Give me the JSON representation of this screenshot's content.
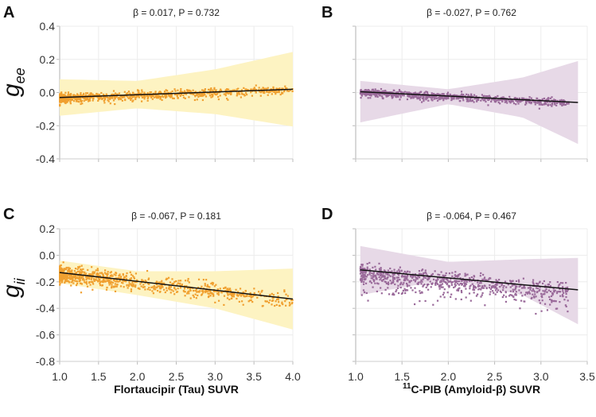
{
  "chart_data": [
    {
      "panel": "A",
      "type": "scatter",
      "title": "β = 0.017, P = 0.732",
      "ylabel": "g",
      "ylabel_sub": "ee",
      "xlabel": "",
      "xlim": [
        1.0,
        4.0
      ],
      "ylim": [
        -0.4,
        0.4
      ],
      "xticks": [
        "1.0",
        "1.5",
        "2.0",
        "2.5",
        "3.0",
        "3.5",
        "4.0"
      ],
      "show_xtick_labels": false,
      "yticks": [
        "0.4",
        "0.2",
        "0.0",
        "-0.2",
        "-0.4"
      ],
      "show_ytick_labels": true,
      "grid": true,
      "point_color": "#f0a030",
      "band_color": "#fdf3c2",
      "regression_line": {
        "x": [
          1.0,
          4.0
        ],
        "y": [
          -0.03,
          0.02
        ]
      },
      "confidence_band": {
        "x": [
          1.0,
          2.0,
          3.0,
          4.0
        ],
        "lower": [
          -0.14,
          -0.095,
          -0.13,
          -0.205
        ],
        "upper": [
          0.08,
          0.07,
          0.14,
          0.245
        ]
      },
      "points": {
        "n": 900,
        "x_range": [
          1.0,
          4.0
        ],
        "x_skew": 2.2,
        "spread": 0.012,
        "down_tail": 0.01
      }
    },
    {
      "panel": "B",
      "type": "scatter",
      "title": "β = -0.027, P = 0.762",
      "ylabel": "",
      "xlabel": "",
      "xlim": [
        1.0,
        3.5
      ],
      "ylim": [
        -0.4,
        0.4
      ],
      "xticks": [
        "1.0",
        "1.5",
        "2.0",
        "2.5",
        "3.0",
        "3.5"
      ],
      "show_xtick_labels": false,
      "yticks": [
        "0.4",
        "0.2",
        "0.0",
        "-0.2",
        "-0.4"
      ],
      "show_ytick_labels": false,
      "grid": true,
      "point_color": "#9a6a9a",
      "band_color": "#e7d9e7",
      "regression_line": {
        "x": [
          1.05,
          3.4
        ],
        "y": [
          0.005,
          -0.06
        ]
      },
      "confidence_band": {
        "x": [
          1.05,
          2.0,
          2.8,
          3.4
        ],
        "lower": [
          -0.18,
          -0.07,
          -0.15,
          -0.31
        ],
        "upper": [
          0.07,
          0.02,
          0.09,
          0.19
        ]
      },
      "points": {
        "n": 800,
        "x_range": [
          1.05,
          3.3
        ],
        "x_skew": 1.3,
        "spread": 0.01,
        "down_tail": 0.01
      }
    },
    {
      "panel": "C",
      "type": "scatter",
      "title": "β = -0.067, P = 0.181",
      "ylabel": "g",
      "ylabel_sub": "ii",
      "xlabel": "Flortaucipir (Tau) SUVR",
      "xlim": [
        1.0,
        4.0
      ],
      "ylim": [
        -0.8,
        0.2
      ],
      "xticks": [
        "1.0",
        "1.5",
        "2.0",
        "2.5",
        "3.0",
        "3.5",
        "4.0"
      ],
      "show_xtick_labels": true,
      "yticks": [
        "0.2",
        "0.0",
        "-0.2",
        "-0.4",
        "-0.6",
        "-0.8"
      ],
      "show_ytick_labels": true,
      "grid": true,
      "point_color": "#f0a030",
      "band_color": "#fdf3c2",
      "regression_line": {
        "x": [
          1.0,
          4.0
        ],
        "y": [
          -0.13,
          -0.33
        ]
      },
      "confidence_band": {
        "x": [
          1.0,
          2.0,
          3.0,
          4.0
        ],
        "lower": [
          -0.21,
          -0.3,
          -0.4,
          -0.56
        ],
        "upper": [
          -0.04,
          -0.12,
          -0.12,
          -0.1
        ]
      },
      "points": {
        "n": 900,
        "x_range": [
          1.0,
          4.0
        ],
        "x_skew": 2.2,
        "spread": 0.03,
        "down_tail": 0.02
      }
    },
    {
      "panel": "D",
      "type": "scatter",
      "title": "β = -0.064, P = 0.467",
      "ylabel": "",
      "xlabel_sup": "11",
      "xlabel": "C-PIB (Amyloid-β) SUVR",
      "xlim": [
        1.0,
        3.5
      ],
      "ylim": [
        -0.8,
        0.2
      ],
      "xticks": [
        "1.0",
        "1.5",
        "2.0",
        "2.5",
        "3.0",
        "3.5"
      ],
      "show_xtick_labels": true,
      "yticks": [
        "0.2",
        "0.0",
        "-0.2",
        "-0.4",
        "-0.6",
        "-0.8"
      ],
      "show_ytick_labels": false,
      "grid": true,
      "point_color": "#9a6a9a",
      "band_color": "#e7d9e7",
      "regression_line": {
        "x": [
          1.05,
          3.4
        ],
        "y": [
          -0.11,
          -0.26
        ]
      },
      "confidence_band": {
        "x": [
          1.05,
          2.0,
          2.8,
          3.4
        ],
        "lower": [
          -0.3,
          -0.18,
          -0.3,
          -0.52
        ],
        "upper": [
          0.07,
          -0.05,
          -0.03,
          -0.02
        ]
      },
      "points": {
        "n": 800,
        "x_range": [
          1.05,
          3.3
        ],
        "x_skew": 1.3,
        "spread": 0.03,
        "down_tail": 0.07
      }
    }
  ]
}
